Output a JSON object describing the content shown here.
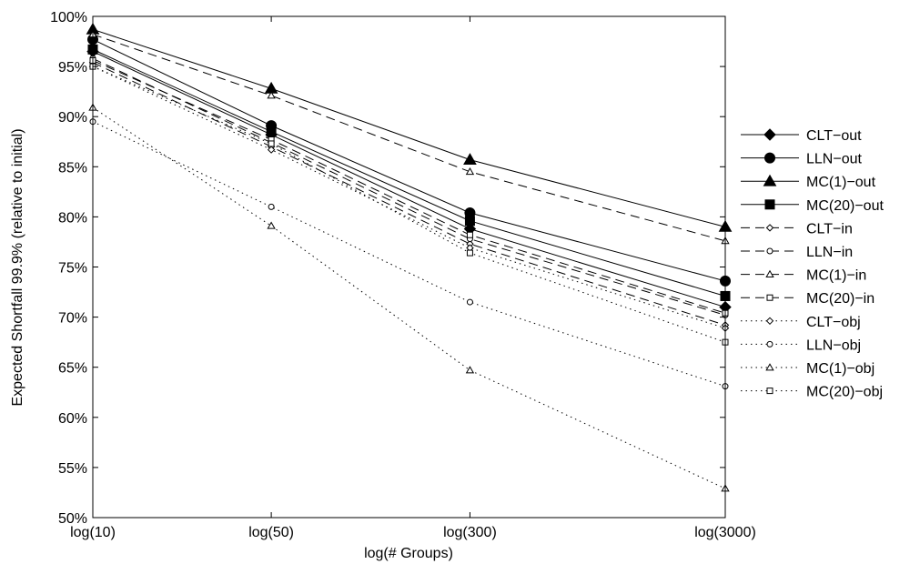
{
  "chart_data": {
    "type": "line",
    "xlabel": "log(# Groups)",
    "ylabel": "Expected Shortfall 99.9% (relative to initial)",
    "x_categories": [
      "log(10)",
      "log(50)",
      "log(300)",
      "log(3000)"
    ],
    "x_values": [
      10,
      50,
      300,
      3000
    ],
    "x_scale": "log",
    "y_ticks": [
      "50%",
      "55%",
      "60%",
      "65%",
      "70%",
      "75%",
      "80%",
      "85%",
      "90%",
      "95%",
      "100%"
    ],
    "ylim": [
      50,
      100
    ],
    "y_unit": "%",
    "grid": false,
    "legend_position": "right",
    "series": [
      {
        "name": "CLT−out",
        "style": "solid",
        "marker": "diamond",
        "filled": true,
        "values": [
          96.5,
          88.2,
          78.8,
          71.0
        ]
      },
      {
        "name": "LLN−out",
        "style": "solid",
        "marker": "circle",
        "filled": true,
        "values": [
          97.7,
          89.1,
          80.4,
          73.6
        ]
      },
      {
        "name": "MC(1)−out",
        "style": "solid",
        "marker": "triangle",
        "filled": true,
        "values": [
          98.7,
          92.8,
          85.7,
          79.0
        ]
      },
      {
        "name": "MC(20)−out",
        "style": "solid",
        "marker": "square",
        "filled": true,
        "values": [
          96.7,
          88.5,
          79.6,
          72.1
        ]
      },
      {
        "name": "CLT−in",
        "style": "dashed",
        "marker": "diamond",
        "filled": false,
        "values": [
          95.4,
          87.0,
          77.3,
          69.2
        ]
      },
      {
        "name": "LLN−in",
        "style": "dashed",
        "marker": "circle",
        "filled": false,
        "values": [
          95.8,
          87.4,
          77.8,
          70.2
        ]
      },
      {
        "name": "MC(1)−in",
        "style": "dashed",
        "marker": "triangle",
        "filled": false,
        "values": [
          98.2,
          92.1,
          84.5,
          77.6
        ]
      },
      {
        "name": "MC(20)−in",
        "style": "dashed",
        "marker": "square",
        "filled": false,
        "values": [
          95.6,
          87.7,
          78.2,
          70.4
        ]
      },
      {
        "name": "CLT−obj",
        "style": "dotted",
        "marker": "diamond",
        "filled": false,
        "values": [
          95.0,
          86.7,
          76.9,
          68.9
        ]
      },
      {
        "name": "LLN−obj",
        "style": "dotted",
        "marker": "circle",
        "filled": false,
        "values": [
          89.5,
          81.0,
          71.5,
          63.1
        ]
      },
      {
        "name": "MC(1)−obj",
        "style": "dotted",
        "marker": "triangle",
        "filled": false,
        "values": [
          90.9,
          79.1,
          64.7,
          52.9
        ]
      },
      {
        "name": "MC(20)−obj",
        "style": "dotted",
        "marker": "square",
        "filled": false,
        "values": [
          95.0,
          87.3,
          76.4,
          67.5
        ]
      }
    ]
  }
}
